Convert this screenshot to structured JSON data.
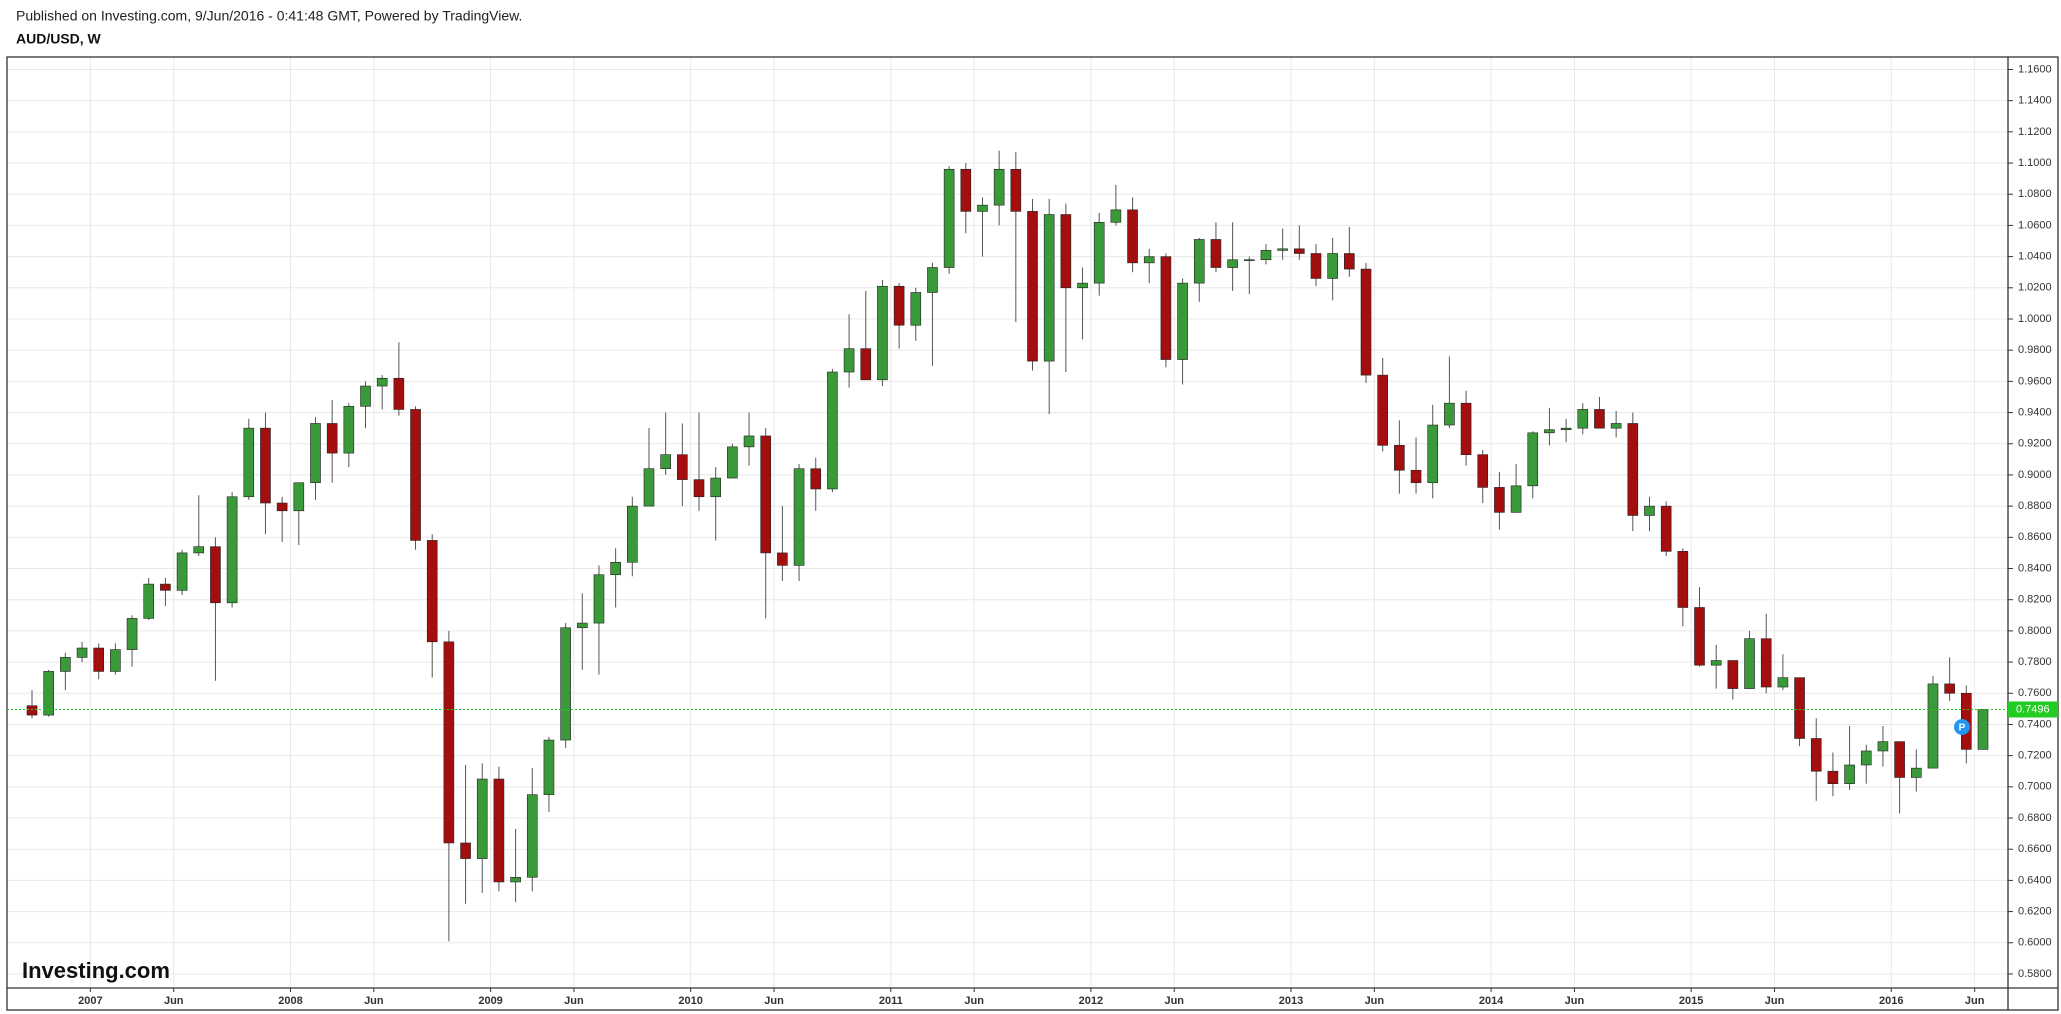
{
  "chart_data": {
    "type": "candlestick",
    "header": "Published on Investing.com, 9/Jun/2016 - 0:41:48 GMT, Powered by TradingView.",
    "title": "AUD/USD, W",
    "watermark": "Investing.com",
    "up_color": "#3a9a3a",
    "down_color": "#a30f0f",
    "price_line_color": "#22cc22",
    "grid": true,
    "x": [
      "2006-09",
      "2006-10",
      "2006-11",
      "2006-12",
      "2007-01",
      "2007-02",
      "2007-03",
      "2007-04",
      "2007-05",
      "2007-06",
      "2007-07",
      "2007-08",
      "2007-09",
      "2007-10",
      "2007-11",
      "2007-12",
      "2008-01",
      "2008-02",
      "2008-03",
      "2008-04",
      "2008-05",
      "2008-06",
      "2008-07",
      "2008-08",
      "2008-09",
      "2008-10",
      "2008-11",
      "2008-12",
      "2009-01",
      "2009-02",
      "2009-03",
      "2009-04",
      "2009-05",
      "2009-06",
      "2009-07",
      "2009-08",
      "2009-09",
      "2009-10",
      "2009-11",
      "2009-12",
      "2010-01",
      "2010-02",
      "2010-03",
      "2010-04",
      "2010-05",
      "2010-06",
      "2010-07",
      "2010-08",
      "2010-09",
      "2010-10",
      "2010-11",
      "2010-12",
      "2011-01",
      "2011-02",
      "2011-03",
      "2011-04",
      "2011-05",
      "2011-06",
      "2011-07",
      "2011-08",
      "2011-09",
      "2011-10",
      "2011-11",
      "2011-12",
      "2012-01",
      "2012-02",
      "2012-03",
      "2012-04",
      "2012-05",
      "2012-06",
      "2012-07",
      "2012-08",
      "2012-09",
      "2012-10",
      "2012-11",
      "2012-12",
      "2013-01",
      "2013-02",
      "2013-03",
      "2013-04",
      "2013-05",
      "2013-06",
      "2013-07",
      "2013-08",
      "2013-09",
      "2013-10",
      "2013-11",
      "2013-12",
      "2014-01",
      "2014-02",
      "2014-03",
      "2014-04",
      "2014-05",
      "2014-06",
      "2014-07",
      "2014-08",
      "2014-09",
      "2014-10",
      "2014-11",
      "2014-12",
      "2015-01",
      "2015-02",
      "2015-03",
      "2015-04",
      "2015-05",
      "2015-06",
      "2015-07",
      "2015-08",
      "2015-09",
      "2015-10",
      "2015-11",
      "2015-12",
      "2016-01",
      "2016-02",
      "2016-03",
      "2016-04",
      "2016-05",
      "2016-06"
    ],
    "open": [
      0.752,
      0.746,
      0.774,
      0.783,
      0.789,
      0.774,
      0.788,
      0.808,
      0.83,
      0.826,
      0.85,
      0.854,
      0.818,
      0.886,
      0.93,
      0.882,
      0.877,
      0.895,
      0.933,
      0.914,
      0.944,
      0.957,
      0.962,
      0.942,
      0.858,
      0.793,
      0.664,
      0.654,
      0.705,
      0.639,
      0.642,
      0.695,
      0.73,
      0.802,
      0.805,
      0.836,
      0.844,
      0.88,
      0.904,
      0.913,
      0.897,
      0.886,
      0.898,
      0.918,
      0.925,
      0.85,
      0.842,
      0.904,
      0.891,
      0.966,
      0.981,
      0.961,
      1.021,
      0.996,
      1.017,
      1.033,
      1.096,
      1.069,
      1.073,
      1.096,
      1.069,
      0.973,
      1.067,
      1.02,
      1.023,
      1.062,
      1.07,
      1.036,
      1.04,
      0.974,
      1.023,
      1.051,
      1.033,
      1.038,
      1.038,
      1.044,
      1.045,
      1.042,
      1.026,
      1.042,
      1.032,
      0.964,
      0.919,
      0.903,
      0.895,
      0.932,
      0.946,
      0.913,
      0.892,
      0.876,
      0.893,
      0.927,
      0.929,
      0.93,
      0.942,
      0.93,
      0.933,
      0.874,
      0.88,
      0.851,
      0.815,
      0.778,
      0.781,
      0.763,
      0.795,
      0.764,
      0.77,
      0.731,
      0.71,
      0.702,
      0.714,
      0.723,
      0.729,
      0.706,
      0.712,
      0.766,
      0.76,
      0.724
    ],
    "high": [
      0.762,
      0.775,
      0.786,
      0.793,
      0.792,
      0.792,
      0.81,
      0.834,
      0.834,
      0.852,
      0.887,
      0.86,
      0.889,
      0.936,
      0.94,
      0.886,
      0.895,
      0.937,
      0.948,
      0.946,
      0.96,
      0.964,
      0.985,
      0.944,
      0.862,
      0.8,
      0.714,
      0.715,
      0.713,
      0.673,
      0.712,
      0.732,
      0.805,
      0.824,
      0.842,
      0.853,
      0.886,
      0.93,
      0.94,
      0.933,
      0.94,
      0.905,
      0.92,
      0.94,
      0.93,
      0.88,
      0.907,
      0.911,
      0.968,
      1.003,
      1.018,
      1.025,
      1.023,
      1.02,
      1.036,
      1.098,
      1.1,
      1.078,
      1.108,
      1.107,
      1.077,
      1.077,
      1.074,
      1.033,
      1.068,
      1.086,
      1.078,
      1.045,
      1.042,
      1.026,
      1.052,
      1.062,
      1.062,
      1.04,
      1.048,
      1.058,
      1.06,
      1.048,
      1.052,
      1.059,
      1.036,
      0.975,
      0.935,
      0.924,
      0.945,
      0.976,
      0.954,
      0.916,
      0.902,
      0.907,
      0.928,
      0.943,
      0.936,
      0.946,
      0.95,
      0.941,
      0.94,
      0.886,
      0.883,
      0.853,
      0.828,
      0.791,
      0.781,
      0.8,
      0.811,
      0.785,
      0.77,
      0.744,
      0.722,
      0.739,
      0.727,
      0.739,
      0.729,
      0.724,
      0.771,
      0.783,
      0.765,
      0.75
    ],
    "low": [
      0.744,
      0.745,
      0.762,
      0.78,
      0.769,
      0.772,
      0.777,
      0.807,
      0.816,
      0.823,
      0.848,
      0.768,
      0.815,
      0.884,
      0.862,
      0.857,
      0.855,
      0.884,
      0.895,
      0.905,
      0.93,
      0.942,
      0.938,
      0.852,
      0.77,
      0.601,
      0.625,
      0.632,
      0.633,
      0.626,
      0.633,
      0.684,
      0.725,
      0.775,
      0.772,
      0.815,
      0.835,
      0.88,
      0.9,
      0.88,
      0.877,
      0.858,
      0.899,
      0.906,
      0.808,
      0.832,
      0.832,
      0.877,
      0.889,
      0.956,
      0.964,
      0.957,
      0.981,
      0.986,
      0.97,
      1.029,
      1.055,
      1.04,
      1.06,
      0.998,
      0.967,
      0.939,
      0.966,
      0.987,
      1.015,
      1.06,
      1.03,
      1.023,
      0.969,
      0.958,
      1.011,
      1.03,
      1.018,
      1.016,
      1.035,
      1.038,
      1.038,
      1.021,
      1.012,
      1.027,
      0.959,
      0.915,
      0.888,
      0.888,
      0.885,
      0.93,
      0.906,
      0.882,
      0.865,
      0.877,
      0.885,
      0.919,
      0.921,
      0.926,
      0.93,
      0.924,
      0.864,
      0.864,
      0.848,
      0.803,
      0.777,
      0.763,
      0.756,
      0.763,
      0.76,
      0.762,
      0.726,
      0.691,
      0.694,
      0.698,
      0.702,
      0.713,
      0.683,
      0.697,
      0.712,
      0.755,
      0.715,
      0.724
    ],
    "close": [
      0.746,
      0.774,
      0.783,
      0.789,
      0.774,
      0.788,
      0.808,
      0.83,
      0.826,
      0.85,
      0.854,
      0.818,
      0.886,
      0.93,
      0.882,
      0.877,
      0.895,
      0.933,
      0.914,
      0.944,
      0.957,
      0.962,
      0.942,
      0.858,
      0.793,
      0.664,
      0.654,
      0.705,
      0.639,
      0.642,
      0.695,
      0.73,
      0.802,
      0.805,
      0.836,
      0.844,
      0.88,
      0.904,
      0.913,
      0.897,
      0.886,
      0.898,
      0.918,
      0.925,
      0.85,
      0.842,
      0.904,
      0.891,
      0.966,
      0.981,
      0.961,
      1.021,
      0.996,
      1.017,
      1.033,
      1.096,
      1.069,
      1.073,
      1.096,
      1.069,
      0.973,
      1.067,
      1.02,
      1.023,
      1.062,
      1.07,
      1.036,
      1.04,
      0.974,
      1.023,
      1.051,
      1.033,
      1.038,
      1.038,
      1.044,
      1.045,
      1.042,
      1.026,
      1.042,
      1.032,
      0.964,
      0.919,
      0.903,
      0.895,
      0.932,
      0.946,
      0.913,
      0.892,
      0.876,
      0.893,
      0.927,
      0.929,
      0.93,
      0.942,
      0.93,
      0.933,
      0.874,
      0.88,
      0.851,
      0.815,
      0.778,
      0.781,
      0.763,
      0.795,
      0.764,
      0.77,
      0.731,
      0.71,
      0.702,
      0.714,
      0.723,
      0.729,
      0.706,
      0.712,
      0.766,
      0.76,
      0.724,
      0.7496
    ],
    "last_price": 0.7496,
    "xlim": [
      "2006-08",
      "2016-08"
    ],
    "xticks": [
      {
        "value": "2007-01",
        "label": "2007"
      },
      {
        "value": "2007-06",
        "label": "Jun"
      },
      {
        "value": "2008-01",
        "label": "2008"
      },
      {
        "value": "2008-06",
        "label": "Jun"
      },
      {
        "value": "2009-01",
        "label": "2009"
      },
      {
        "value": "2009-06",
        "label": "Jun"
      },
      {
        "value": "2010-01",
        "label": "2010"
      },
      {
        "value": "2010-06",
        "label": "Jun"
      },
      {
        "value": "2011-01",
        "label": "2011"
      },
      {
        "value": "2011-06",
        "label": "Jun"
      },
      {
        "value": "2012-01",
        "label": "2012"
      },
      {
        "value": "2012-06",
        "label": "Jun"
      },
      {
        "value": "2013-01",
        "label": "2013"
      },
      {
        "value": "2013-06",
        "label": "Jun"
      },
      {
        "value": "2014-01",
        "label": "2014"
      },
      {
        "value": "2014-06",
        "label": "Jun"
      },
      {
        "value": "2015-01",
        "label": "2015"
      },
      {
        "value": "2015-06",
        "label": "Jun"
      },
      {
        "value": "2016-01",
        "label": "2016"
      },
      {
        "value": "2016-06",
        "label": "Jun"
      }
    ],
    "ylim": [
      0.571,
      1.168
    ],
    "yticks": [
      {
        "value": 0.58,
        "label": "0.5800"
      },
      {
        "value": 0.6,
        "label": "0.6000"
      },
      {
        "value": 0.62,
        "label": "0.6200"
      },
      {
        "value": 0.64,
        "label": "0.6400"
      },
      {
        "value": 0.66,
        "label": "0.6600"
      },
      {
        "value": 0.68,
        "label": "0.6800"
      },
      {
        "value": 0.7,
        "label": "0.7000"
      },
      {
        "value": 0.72,
        "label": "0.7200"
      },
      {
        "value": 0.74,
        "label": "0.7400"
      },
      {
        "value": 0.76,
        "label": "0.7600"
      },
      {
        "value": 0.78,
        "label": "0.7800"
      },
      {
        "value": 0.8,
        "label": "0.8000"
      },
      {
        "value": 0.82,
        "label": "0.8200"
      },
      {
        "value": 0.84,
        "label": "0.8400"
      },
      {
        "value": 0.86,
        "label": "0.8600"
      },
      {
        "value": 0.88,
        "label": "0.8800"
      },
      {
        "value": 0.9,
        "label": "0.9000"
      },
      {
        "value": 0.92,
        "label": "0.9200"
      },
      {
        "value": 0.94,
        "label": "0.9400"
      },
      {
        "value": 0.96,
        "label": "0.9600"
      },
      {
        "value": 0.98,
        "label": "0.9800"
      },
      {
        "value": 1.0,
        "label": "1.0000"
      },
      {
        "value": 1.02,
        "label": "1.0200"
      },
      {
        "value": 1.04,
        "label": "1.0400"
      },
      {
        "value": 1.06,
        "label": "1.0600"
      },
      {
        "value": 1.08,
        "label": "1.0800"
      },
      {
        "value": 1.1,
        "label": "1.1000"
      },
      {
        "value": 1.12,
        "label": "1.1200"
      },
      {
        "value": 1.14,
        "label": "1.1400"
      },
      {
        "value": 1.16,
        "label": "1.1600"
      }
    ]
  }
}
